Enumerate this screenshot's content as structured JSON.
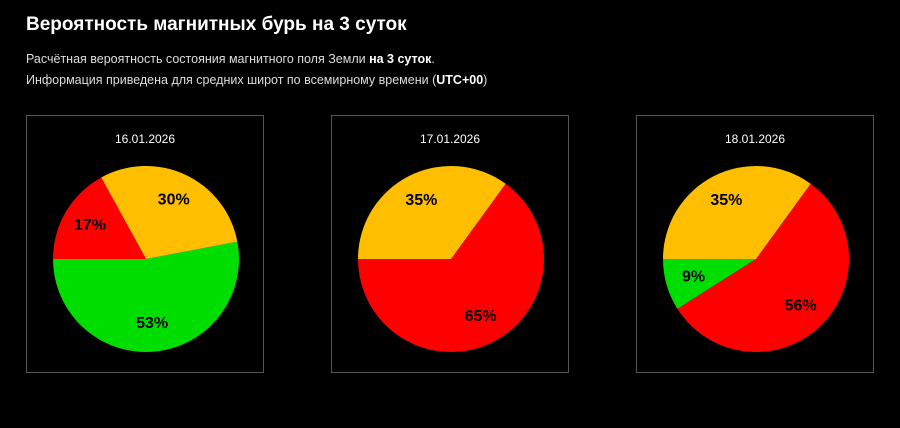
{
  "header": {
    "title": "Вероятность магнитных бурь на 3 суток",
    "line1_text": "Расчётная вероятность состояния магнитного поля Земли ",
    "line1_bold": "на 3 суток",
    "line1_end": ".",
    "line2_text": "Информация приведена для средних широт по всемирному времени (",
    "line2_bold": "UTC+00",
    "line2_end": ")"
  },
  "colors": {
    "background": "#000000",
    "green": "#00dd00",
    "orange": "#ffbf00",
    "red": "#ff0000"
  },
  "chart_data": [
    {
      "type": "pie",
      "title": "16.01.2026",
      "slices": [
        {
          "value": 53,
          "label": "53%",
          "color": "#00dd00"
        },
        {
          "value": 30,
          "label": "30%",
          "color": "#ffbf00"
        },
        {
          "value": 17,
          "label": "17%",
          "color": "#ff0000"
        }
      ]
    },
    {
      "type": "pie",
      "title": "17.01.2026",
      "slices": [
        {
          "value": 0,
          "label": "",
          "color": "#00dd00"
        },
        {
          "value": 65,
          "label": "65%",
          "color": "#ff0000"
        },
        {
          "value": 35,
          "label": "35%",
          "color": "#ffbf00"
        }
      ]
    },
    {
      "type": "pie",
      "title": "18.01.2026",
      "slices": [
        {
          "value": 9,
          "label": "9%",
          "color": "#00dd00"
        },
        {
          "value": 56,
          "label": "56%",
          "color": "#ff0000"
        },
        {
          "value": 35,
          "label": "35%",
          "color": "#ffbf00"
        }
      ]
    }
  ]
}
